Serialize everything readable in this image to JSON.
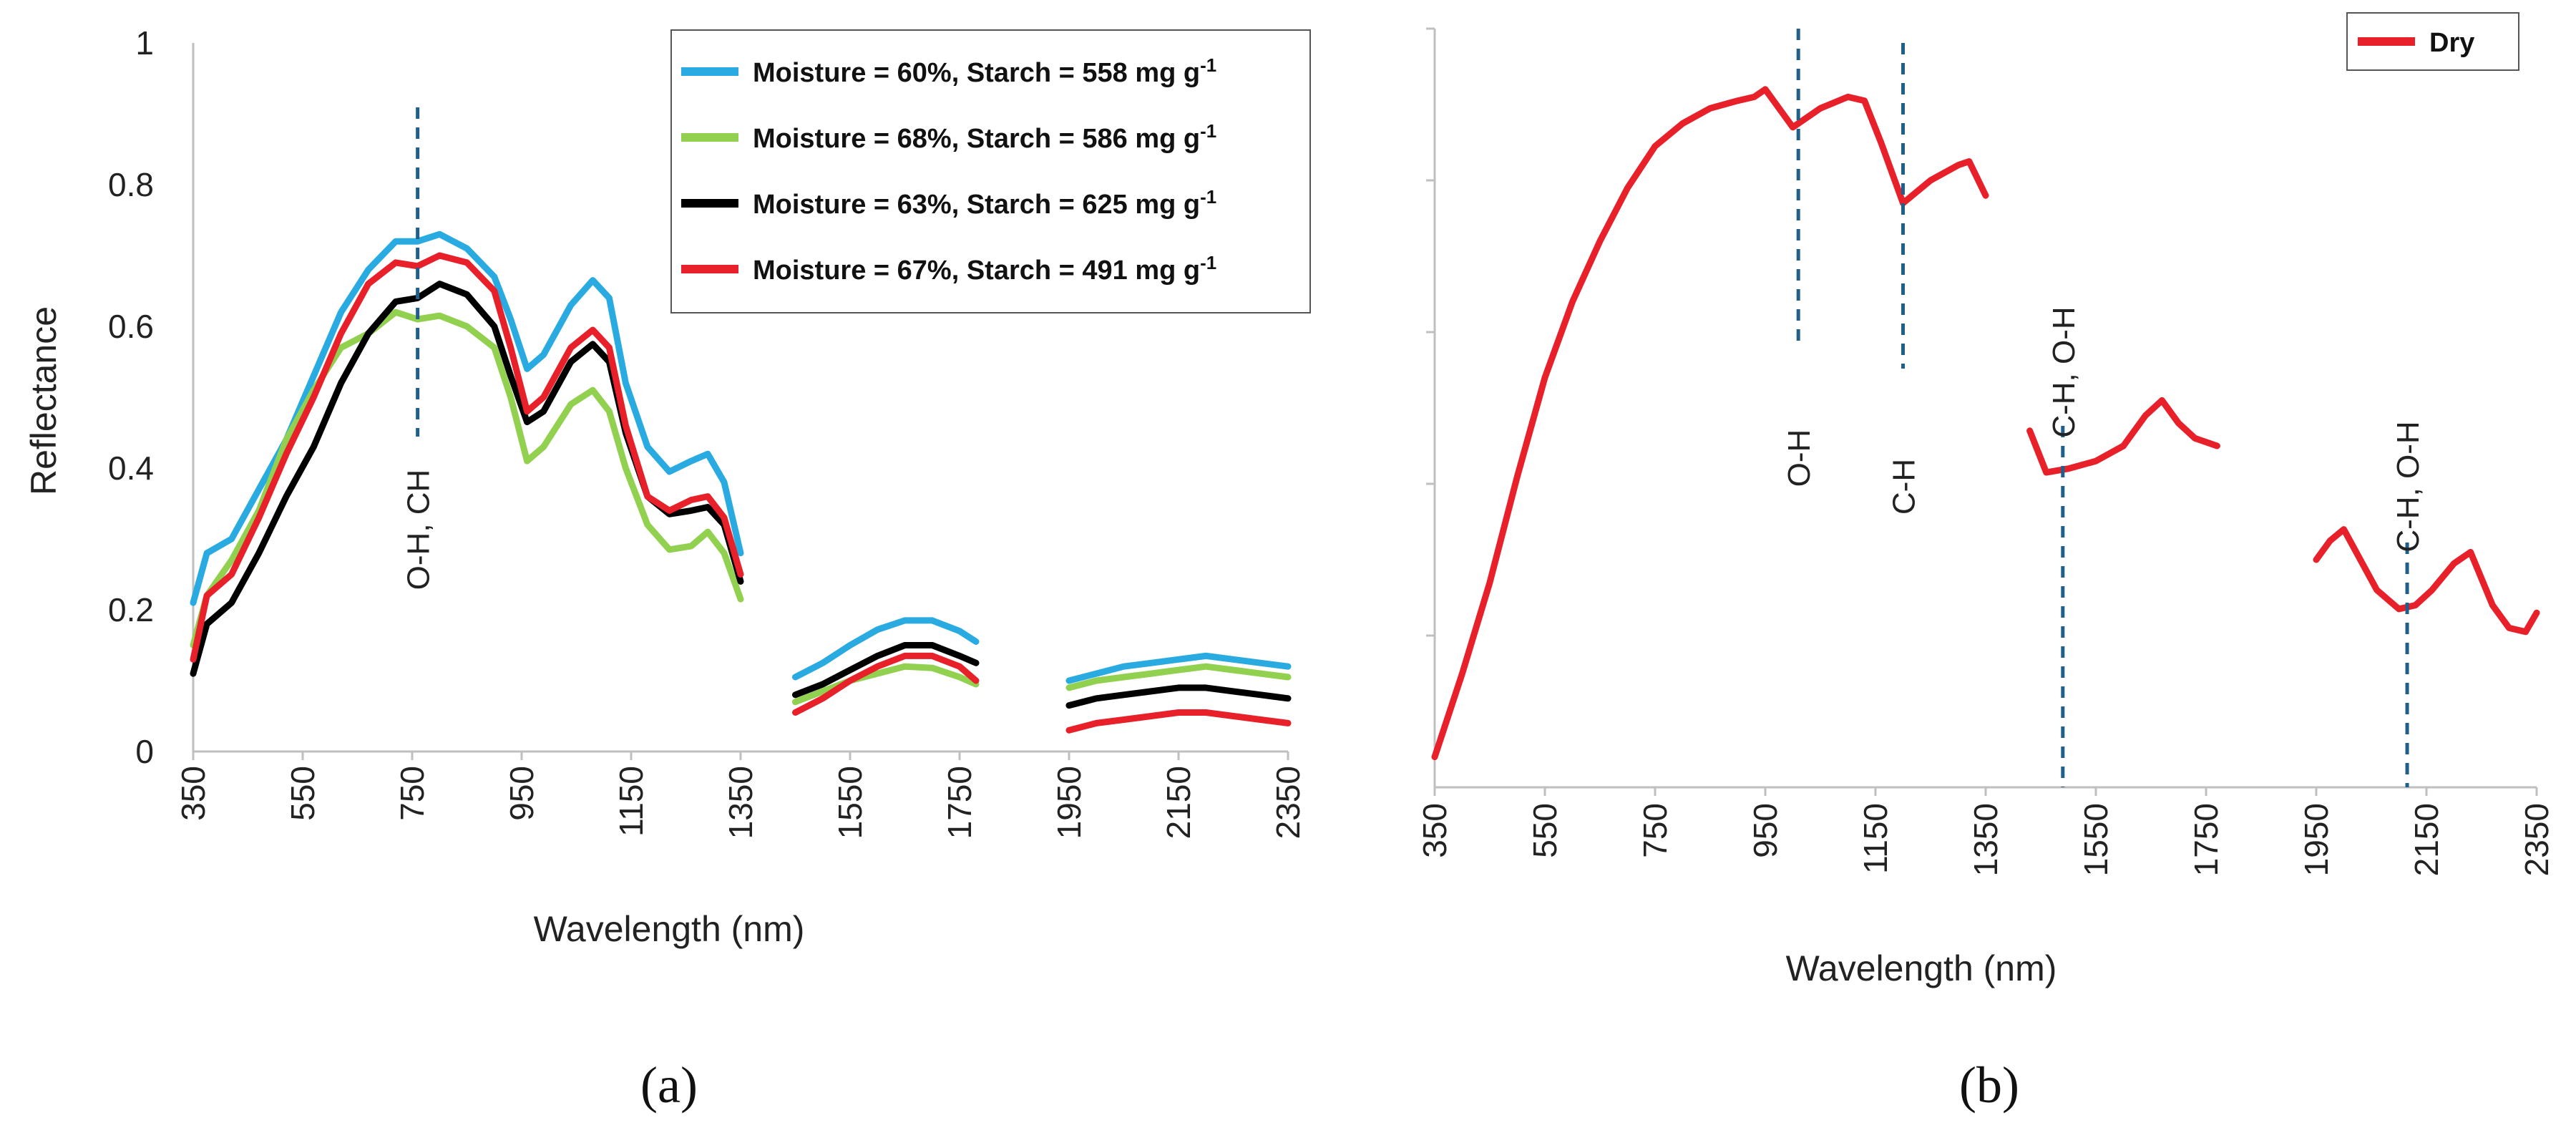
{
  "chart_data": [
    {
      "type": "line",
      "panel_label": "(a)",
      "xlabel": "Wavelength (nm)",
      "ylabel": "Reflectance",
      "xlim": [
        350,
        2350
      ],
      "ylim": [
        0,
        1
      ],
      "x_ticks": [
        "350",
        "550",
        "750",
        "950",
        "1150",
        "1350",
        "1550",
        "1750",
        "1950",
        "2150",
        "2350"
      ],
      "y_ticks": [
        "0",
        "0.2",
        "0.4",
        "0.6",
        "0.8",
        "1"
      ],
      "legend_position": "top-right",
      "annotations": [
        {
          "text": "O-H, CH",
          "x": 760
        }
      ],
      "series": [
        {
          "name": "Moisture = 60%, Starch = 558 mg g-1",
          "legend_main": "Moisture = 60%, Starch = 558 mg g",
          "legend_sup": "-1",
          "color": "#29abe2",
          "segments": [
            [
              [
                350,
                0.21
              ],
              [
                375,
                0.28
              ],
              [
                420,
                0.3
              ],
              [
                470,
                0.37
              ],
              [
                520,
                0.44
              ],
              [
                570,
                0.53
              ],
              [
                620,
                0.62
              ],
              [
                670,
                0.68
              ],
              [
                720,
                0.72
              ],
              [
                760,
                0.72
              ],
              [
                800,
                0.73
              ],
              [
                850,
                0.71
              ],
              [
                900,
                0.67
              ],
              [
                930,
                0.61
              ],
              [
                960,
                0.54
              ],
              [
                990,
                0.56
              ],
              [
                1040,
                0.63
              ],
              [
                1080,
                0.665
              ],
              [
                1110,
                0.64
              ],
              [
                1140,
                0.52
              ],
              [
                1180,
                0.43
              ],
              [
                1220,
                0.395
              ],
              [
                1260,
                0.41
              ],
              [
                1290,
                0.42
              ],
              [
                1320,
                0.38
              ],
              [
                1350,
                0.28
              ]
            ],
            [
              [
                1450,
                0.105
              ],
              [
                1500,
                0.125
              ],
              [
                1550,
                0.15
              ],
              [
                1600,
                0.172
              ],
              [
                1650,
                0.185
              ],
              [
                1700,
                0.185
              ],
              [
                1750,
                0.17
              ],
              [
                1780,
                0.155
              ]
            ],
            [
              [
                1950,
                0.1
              ],
              [
                2000,
                0.11
              ],
              [
                2050,
                0.12
              ],
              [
                2100,
                0.125
              ],
              [
                2150,
                0.13
              ],
              [
                2200,
                0.135
              ],
              [
                2250,
                0.13
              ],
              [
                2300,
                0.125
              ],
              [
                2350,
                0.12
              ]
            ]
          ]
        },
        {
          "name": "Moisture = 68%, Starch = 586 mg g-1",
          "legend_main": "Moisture = 68%, Starch = 586 mg g",
          "legend_sup": "-1",
          "color": "#92d050",
          "segments": [
            [
              [
                350,
                0.15
              ],
              [
                375,
                0.22
              ],
              [
                420,
                0.27
              ],
              [
                470,
                0.34
              ],
              [
                520,
                0.44
              ],
              [
                570,
                0.51
              ],
              [
                620,
                0.57
              ],
              [
                670,
                0.59
              ],
              [
                720,
                0.62
              ],
              [
                760,
                0.61
              ],
              [
                800,
                0.615
              ],
              [
                850,
                0.6
              ],
              [
                900,
                0.57
              ],
              [
                930,
                0.5
              ],
              [
                960,
                0.41
              ],
              [
                990,
                0.43
              ],
              [
                1040,
                0.49
              ],
              [
                1080,
                0.51
              ],
              [
                1110,
                0.48
              ],
              [
                1140,
                0.4
              ],
              [
                1180,
                0.32
              ],
              [
                1220,
                0.285
              ],
              [
                1260,
                0.29
              ],
              [
                1290,
                0.31
              ],
              [
                1320,
                0.28
              ],
              [
                1350,
                0.215
              ]
            ],
            [
              [
                1450,
                0.07
              ],
              [
                1500,
                0.085
              ],
              [
                1550,
                0.1
              ],
              [
                1600,
                0.11
              ],
              [
                1650,
                0.12
              ],
              [
                1700,
                0.118
              ],
              [
                1750,
                0.105
              ],
              [
                1780,
                0.095
              ]
            ],
            [
              [
                1950,
                0.09
              ],
              [
                2000,
                0.1
              ],
              [
                2050,
                0.105
              ],
              [
                2100,
                0.11
              ],
              [
                2150,
                0.115
              ],
              [
                2200,
                0.12
              ],
              [
                2250,
                0.115
              ],
              [
                2300,
                0.11
              ],
              [
                2350,
                0.105
              ]
            ]
          ]
        },
        {
          "name": "Moisture = 63%, Starch = 625 mg g-1",
          "legend_main": "Moisture = 63%, Starch = 625 mg g",
          "legend_sup": "-1",
          "color": "#000000",
          "segments": [
            [
              [
                350,
                0.11
              ],
              [
                375,
                0.18
              ],
              [
                420,
                0.21
              ],
              [
                470,
                0.28
              ],
              [
                520,
                0.36
              ],
              [
                570,
                0.43
              ],
              [
                620,
                0.52
              ],
              [
                670,
                0.59
              ],
              [
                720,
                0.635
              ],
              [
                760,
                0.64
              ],
              [
                800,
                0.66
              ],
              [
                850,
                0.645
              ],
              [
                900,
                0.6
              ],
              [
                930,
                0.53
              ],
              [
                960,
                0.465
              ],
              [
                990,
                0.48
              ],
              [
                1040,
                0.55
              ],
              [
                1080,
                0.575
              ],
              [
                1110,
                0.55
              ],
              [
                1140,
                0.45
              ],
              [
                1180,
                0.36
              ],
              [
                1220,
                0.335
              ],
              [
                1260,
                0.34
              ],
              [
                1290,
                0.345
              ],
              [
                1320,
                0.32
              ],
              [
                1350,
                0.24
              ]
            ],
            [
              [
                1450,
                0.08
              ],
              [
                1500,
                0.095
              ],
              [
                1550,
                0.115
              ],
              [
                1600,
                0.135
              ],
              [
                1650,
                0.15
              ],
              [
                1700,
                0.15
              ],
              [
                1750,
                0.135
              ],
              [
                1780,
                0.125
              ]
            ],
            [
              [
                1950,
                0.065
              ],
              [
                2000,
                0.075
              ],
              [
                2050,
                0.08
              ],
              [
                2100,
                0.085
              ],
              [
                2150,
                0.09
              ],
              [
                2200,
                0.09
              ],
              [
                2250,
                0.085
              ],
              [
                2300,
                0.08
              ],
              [
                2350,
                0.075
              ]
            ]
          ]
        },
        {
          "name": "Moisture = 67%, Starch = 491 mg g-1",
          "legend_main": "Moisture = 67%, Starch = 491 mg g",
          "legend_sup": "-1",
          "color": "#e8202a",
          "segments": [
            [
              [
                350,
                0.13
              ],
              [
                375,
                0.22
              ],
              [
                420,
                0.25
              ],
              [
                470,
                0.33
              ],
              [
                520,
                0.42
              ],
              [
                570,
                0.5
              ],
              [
                620,
                0.59
              ],
              [
                670,
                0.66
              ],
              [
                720,
                0.69
              ],
              [
                760,
                0.685
              ],
              [
                800,
                0.7
              ],
              [
                850,
                0.69
              ],
              [
                900,
                0.65
              ],
              [
                930,
                0.57
              ],
              [
                960,
                0.48
              ],
              [
                990,
                0.5
              ],
              [
                1040,
                0.57
              ],
              [
                1080,
                0.595
              ],
              [
                1110,
                0.57
              ],
              [
                1140,
                0.46
              ],
              [
                1180,
                0.36
              ],
              [
                1220,
                0.34
              ],
              [
                1260,
                0.355
              ],
              [
                1290,
                0.36
              ],
              [
                1320,
                0.33
              ],
              [
                1350,
                0.25
              ]
            ],
            [
              [
                1450,
                0.055
              ],
              [
                1500,
                0.075
              ],
              [
                1550,
                0.1
              ],
              [
                1600,
                0.12
              ],
              [
                1650,
                0.135
              ],
              [
                1700,
                0.135
              ],
              [
                1750,
                0.12
              ],
              [
                1780,
                0.1
              ]
            ],
            [
              [
                1950,
                0.03
              ],
              [
                2000,
                0.04
              ],
              [
                2050,
                0.045
              ],
              [
                2100,
                0.05
              ],
              [
                2150,
                0.055
              ],
              [
                2200,
                0.055
              ],
              [
                2250,
                0.05
              ],
              [
                2300,
                0.045
              ],
              [
                2350,
                0.04
              ]
            ]
          ]
        }
      ]
    },
    {
      "type": "line",
      "panel_label": "(b)",
      "xlabel": "Wavelength (nm)",
      "ylabel": "",
      "xlim": [
        350,
        2350
      ],
      "ylim": [
        0,
        1
      ],
      "x_ticks": [
        "350",
        "550",
        "750",
        "950",
        "1150",
        "1350",
        "1550",
        "1750",
        "1950",
        "2150",
        "2350"
      ],
      "legend_position": "top-right",
      "annotations": [
        {
          "text": "O-H",
          "x": 1010
        },
        {
          "text": "C-H",
          "x": 1200
        },
        {
          "text": "C-H, O-H",
          "x": 1490
        },
        {
          "text": "C-H, O-H",
          "x": 2115
        }
      ],
      "series": [
        {
          "name": "Dry",
          "color": "#e8202a",
          "segments": [
            [
              [
                350,
                0.04
              ],
              [
                400,
                0.15
              ],
              [
                450,
                0.27
              ],
              [
                500,
                0.41
              ],
              [
                550,
                0.54
              ],
              [
                600,
                0.64
              ],
              [
                650,
                0.72
              ],
              [
                700,
                0.79
              ],
              [
                750,
                0.845
              ],
              [
                800,
                0.875
              ],
              [
                850,
                0.895
              ],
              [
                900,
                0.905
              ],
              [
                930,
                0.91
              ],
              [
                950,
                0.92
              ],
              [
                980,
                0.89
              ],
              [
                1000,
                0.87
              ],
              [
                1050,
                0.895
              ],
              [
                1100,
                0.91
              ],
              [
                1130,
                0.905
              ],
              [
                1160,
                0.85
              ],
              [
                1200,
                0.77
              ],
              [
                1250,
                0.8
              ],
              [
                1300,
                0.82
              ],
              [
                1320,
                0.825
              ],
              [
                1350,
                0.78
              ]
            ],
            [
              [
                1430,
                0.47
              ],
              [
                1460,
                0.415
              ],
              [
                1500,
                0.42
              ],
              [
                1550,
                0.43
              ],
              [
                1600,
                0.45
              ],
              [
                1640,
                0.49
              ],
              [
                1670,
                0.51
              ],
              [
                1700,
                0.48
              ],
              [
                1730,
                0.46
              ],
              [
                1770,
                0.45
              ]
            ],
            [
              [
                1950,
                0.3
              ],
              [
                1975,
                0.325
              ],
              [
                2000,
                0.34
              ],
              [
                2030,
                0.3
              ],
              [
                2060,
                0.26
              ],
              [
                2100,
                0.235
              ],
              [
                2130,
                0.24
              ],
              [
                2160,
                0.26
              ],
              [
                2200,
                0.295
              ],
              [
                2230,
                0.31
              ],
              [
                2270,
                0.24
              ],
              [
                2300,
                0.21
              ],
              [
                2330,
                0.205
              ],
              [
                2350,
                0.23
              ]
            ]
          ]
        }
      ]
    }
  ]
}
